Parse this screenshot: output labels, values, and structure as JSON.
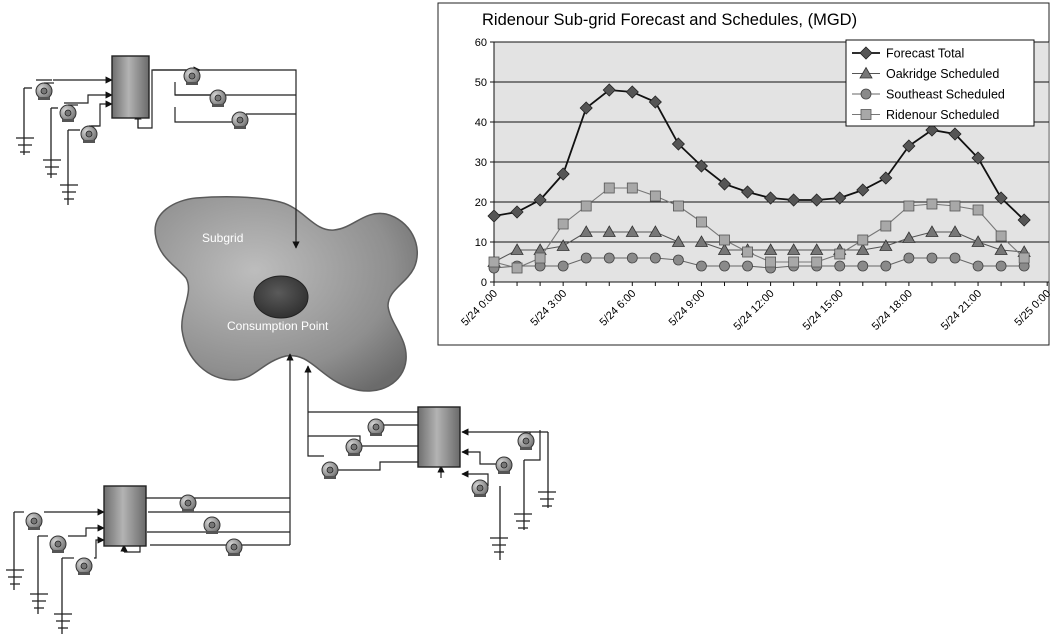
{
  "subgrid": {
    "label": "Subgrid",
    "point_label": "Consumption Point"
  },
  "colors": {
    "forecast": "#555555",
    "oakridge": "#777777",
    "southeast": "#8a8a8a",
    "ridenour": "#a8a8a8",
    "plot_background": "#e3e3e3"
  },
  "chart_data": {
    "type": "line",
    "title": "Ridenour Sub-grid Forecast and Schedules, (MGD)",
    "xlabel": "",
    "ylabel": "",
    "ylim": [
      0,
      60
    ],
    "yticks": [
      0,
      10,
      20,
      30,
      40,
      50,
      60
    ],
    "grid": true,
    "legend_position": "top-right",
    "x_start": "5/24 0:00",
    "x_end": "5/25 0:00",
    "xtick_labels": [
      "5/24 0:00",
      "5/24 3:00",
      "5/24 6:00",
      "5/24 9:00",
      "5/24 12:00",
      "5/24 15:00",
      "5/24 18:00",
      "5/24 21:00",
      "5/25 0:00"
    ],
    "series": [
      {
        "name": "Forecast Total",
        "marker": "diamond",
        "x": [
          0,
          1,
          2,
          3,
          4,
          5,
          6,
          7,
          8,
          9,
          10,
          11,
          12,
          13,
          14,
          15,
          16,
          17,
          18,
          19,
          20,
          21,
          22,
          23
        ],
        "values": [
          16.5,
          17.5,
          20.5,
          27,
          43.5,
          48,
          47.5,
          45,
          34.5,
          29,
          24.5,
          22.5,
          21,
          20.5,
          20.5,
          21,
          23,
          26,
          34,
          38,
          37,
          31,
          21,
          15.5
        ]
      },
      {
        "name": "Oakridge Scheduled",
        "marker": "triangle",
        "x": [
          0,
          1,
          2,
          3,
          4,
          5,
          6,
          7,
          8,
          9,
          10,
          11,
          12,
          13,
          14,
          15,
          16,
          17,
          18,
          19,
          20,
          21,
          22,
          23
        ],
        "values": [
          5,
          8,
          8,
          9,
          12.5,
          12.5,
          12.5,
          12.5,
          10,
          10,
          8,
          8,
          8,
          8,
          8,
          8,
          8,
          9,
          11,
          12.5,
          12.5,
          10,
          8,
          7.5
        ]
      },
      {
        "name": "Southeast Scheduled",
        "marker": "circle",
        "x": [
          0,
          1,
          2,
          3,
          4,
          5,
          6,
          7,
          8,
          9,
          10,
          11,
          12,
          13,
          14,
          15,
          16,
          17,
          18,
          19,
          20,
          21,
          22,
          23
        ],
        "values": [
          3.5,
          4,
          4,
          4,
          6,
          6,
          6,
          6,
          5.5,
          4,
          4,
          4,
          3.5,
          4,
          4,
          4,
          4,
          4,
          6,
          6,
          6,
          4,
          4,
          4
        ]
      },
      {
        "name": "Ridenour Scheduled",
        "marker": "square",
        "x": [
          0,
          1,
          2,
          3,
          4,
          5,
          6,
          7,
          8,
          9,
          10,
          11,
          12,
          13,
          14,
          15,
          16,
          17,
          18,
          19,
          20,
          21,
          22,
          23
        ],
        "values": [
          5,
          3.5,
          6,
          14.5,
          19,
          23.5,
          23.5,
          21.5,
          19,
          15,
          10.5,
          7.5,
          5,
          5,
          5,
          7,
          10.5,
          14,
          19,
          19.5,
          19,
          18,
          11.5,
          6
        ]
      }
    ]
  }
}
